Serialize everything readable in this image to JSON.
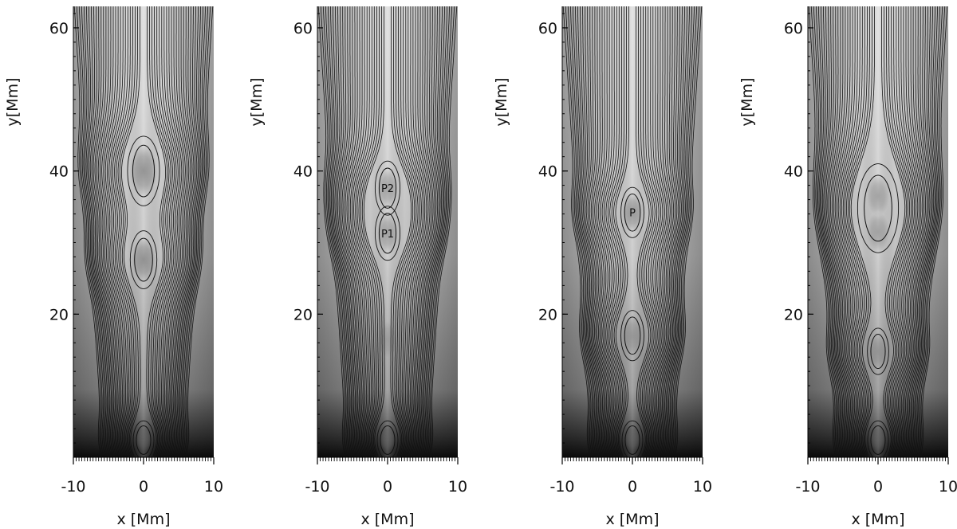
{
  "chart_data": [
    {
      "type": "contour",
      "xlabel": "x [Mm]",
      "ylabel": "y[Mm]",
      "xlim": [
        -10,
        10
      ],
      "ylim": [
        0,
        63
      ],
      "xticks": [
        -10,
        0,
        10
      ],
      "yticks": [
        20,
        40,
        60
      ],
      "plasmoids": [
        {
          "label": "",
          "x": 0,
          "y": 40,
          "half_height": 3.6
        },
        {
          "label": "",
          "x": 0,
          "y": 27.6,
          "half_height": 3.0
        },
        {
          "label": "",
          "x": 0,
          "y": 2.4,
          "half_height": 2.0
        }
      ],
      "shade_spots": [
        {
          "x": 0,
          "y": 40,
          "half_height": 3.5,
          "strength": 0.6
        },
        {
          "x": 0,
          "y": 27.6,
          "half_height": 3.0,
          "strength": 0.6
        },
        {
          "x": 0,
          "y": 2.4,
          "half_height": 1.6,
          "strength": 0.5
        }
      ]
    },
    {
      "type": "contour",
      "xlabel": "x [Mm]",
      "ylabel": "y[Mm]",
      "xlim": [
        -10,
        10
      ],
      "ylim": [
        0,
        63
      ],
      "xticks": [
        -10,
        0,
        10
      ],
      "yticks": [
        20,
        40,
        60
      ],
      "plasmoids": [
        {
          "label": "P2",
          "x": 0,
          "y": 37.6,
          "half_height": 2.8
        },
        {
          "label": "P1",
          "x": 0,
          "y": 31.3,
          "half_height": 2.8
        },
        {
          "label": "",
          "x": 0,
          "y": 2.4,
          "half_height": 2.0
        }
      ],
      "shade_spots": [
        {
          "x": 0,
          "y": 37.6,
          "half_height": 2.6,
          "strength": 0.45
        },
        {
          "x": 0,
          "y": 31.3,
          "half_height": 2.6,
          "strength": 0.45
        },
        {
          "x": 0,
          "y": 16.5,
          "half_height": 2.5,
          "strength": 0.3
        },
        {
          "x": 0,
          "y": 2.4,
          "half_height": 1.6,
          "strength": 0.5
        }
      ]
    },
    {
      "type": "contour",
      "xlabel": "x [Mm]",
      "ylabel": "y[Mm]",
      "xlim": [
        -10,
        10
      ],
      "ylim": [
        0,
        63
      ],
      "xticks": [
        -10,
        0,
        10
      ],
      "yticks": [
        20,
        40,
        60
      ],
      "plasmoids": [
        {
          "label": "P",
          "x": 0,
          "y": 34.2,
          "half_height": 2.6
        },
        {
          "label": "",
          "x": 0,
          "y": 17.0,
          "half_height": 2.6
        },
        {
          "label": "",
          "x": 0,
          "y": 2.4,
          "half_height": 2.0
        }
      ],
      "shade_spots": [
        {
          "x": 0,
          "y": 34.2,
          "half_height": 2.6,
          "strength": 0.55
        },
        {
          "x": 0,
          "y": 17.0,
          "half_height": 2.6,
          "strength": 0.4
        },
        {
          "x": 0,
          "y": 2.4,
          "half_height": 1.6,
          "strength": 0.5
        }
      ]
    },
    {
      "type": "contour",
      "xlabel": "x [Mm]",
      "ylabel": "y[Mm]",
      "xlim": [
        -10,
        10
      ],
      "ylim": [
        0,
        63
      ],
      "xticks": [
        -10,
        0,
        10
      ],
      "yticks": [
        20,
        40,
        60
      ],
      "plasmoids": [
        {
          "label": "",
          "x": 0,
          "y": 34.8,
          "half_height": 4.6
        },
        {
          "label": "",
          "x": 0,
          "y": 14.8,
          "half_height": 2.4
        },
        {
          "label": "",
          "x": 0,
          "y": 2.4,
          "half_height": 2.0
        }
      ],
      "shade_spots": [
        {
          "x": 0,
          "y": 36.5,
          "half_height": 2.8,
          "strength": 0.45
        },
        {
          "x": 0,
          "y": 31.5,
          "half_height": 2.8,
          "strength": 0.45
        },
        {
          "x": 0,
          "y": 14.8,
          "half_height": 2.3,
          "strength": 0.4
        },
        {
          "x": 0,
          "y": 2.4,
          "half_height": 1.6,
          "strength": 0.5
        }
      ]
    }
  ]
}
